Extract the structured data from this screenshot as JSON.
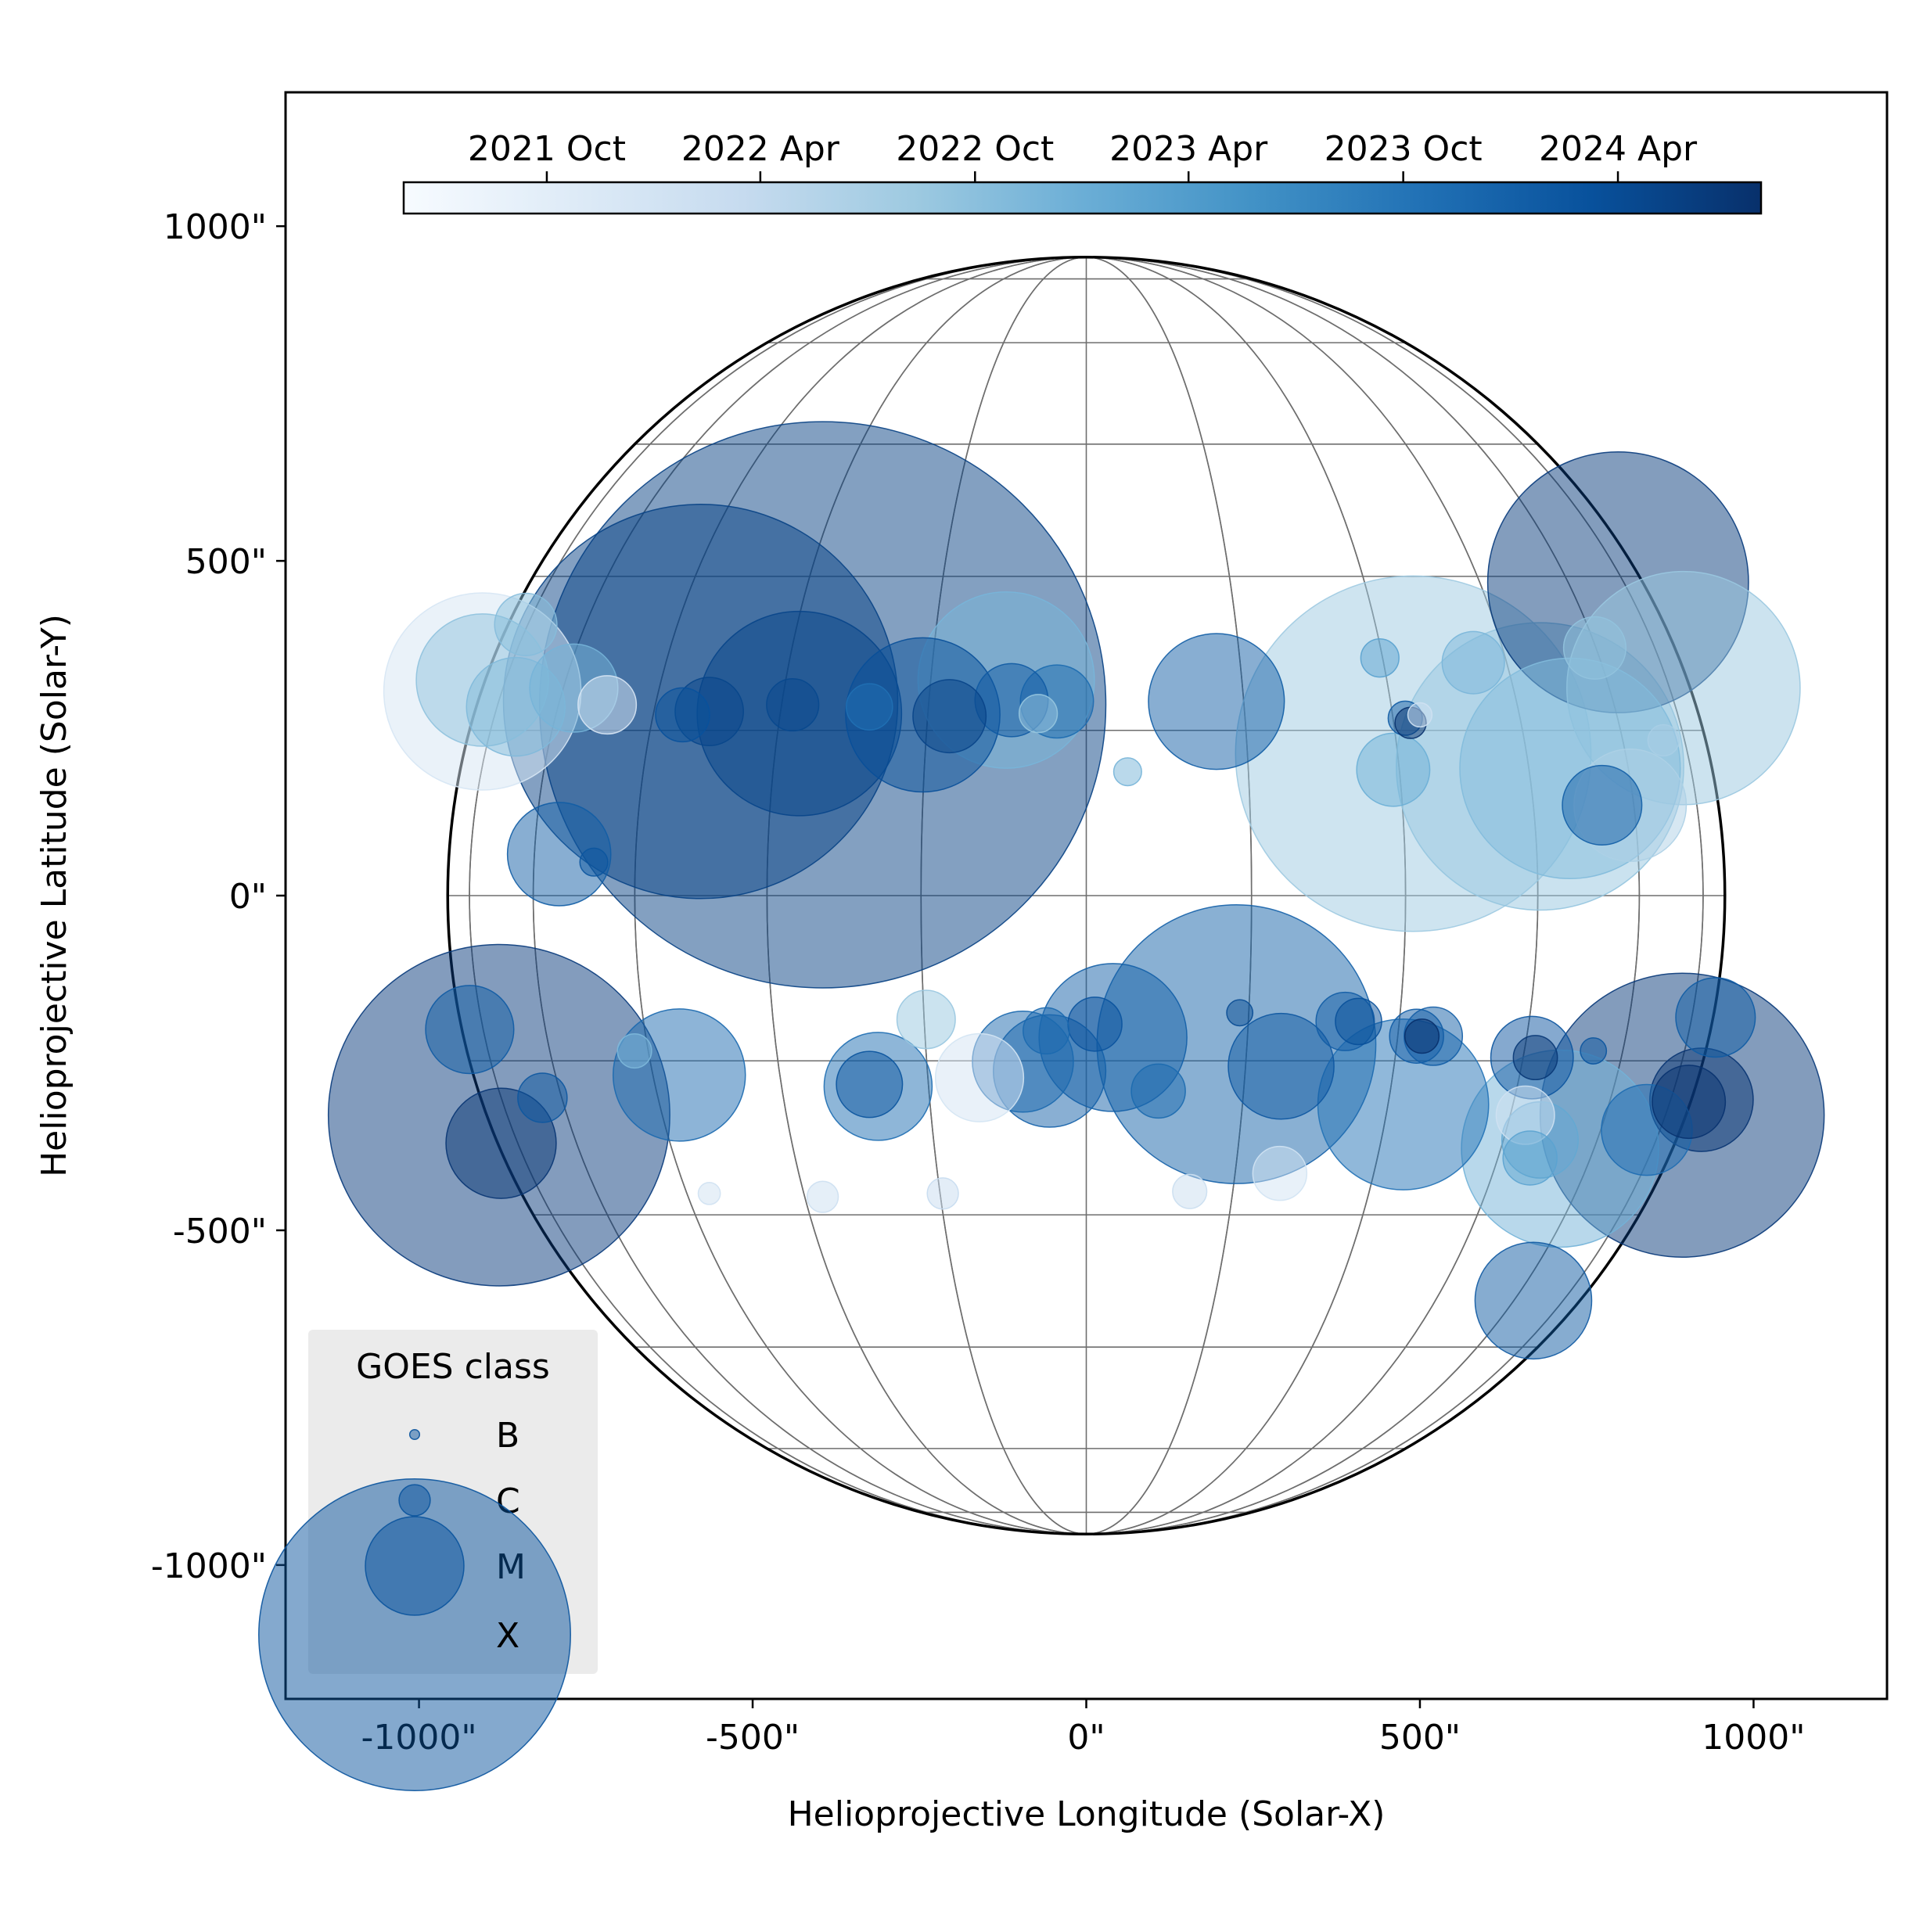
{
  "chart_data": {
    "type": "scatter",
    "xlabel": "Helioprojective Longitude (Solar-X)",
    "ylabel": "Helioprojective Latitude (Solar-Y)",
    "xlim": [
      -1200,
      1200
    ],
    "ylim": [
      -1200,
      1200
    ],
    "x_ticks": [
      {
        "value": -1000,
        "label": "-1000\""
      },
      {
        "value": -500,
        "label": "-500\""
      },
      {
        "value": 0,
        "label": "0\""
      },
      {
        "value": 500,
        "label": "500\""
      },
      {
        "value": 1000,
        "label": "1000\""
      }
    ],
    "y_ticks": [
      {
        "value": 1000,
        "label": "1000\""
      },
      {
        "value": 500,
        "label": "500\""
      },
      {
        "value": 0,
        "label": "0\""
      },
      {
        "value": -500,
        "label": "-500\""
      },
      {
        "value": -1000,
        "label": "-1000\""
      }
    ],
    "solar_radius_arcsec": 957,
    "grid": true,
    "colorbar": {
      "location": "top",
      "colormap": "Blues",
      "range": [
        "2021-06-01",
        "2024-08-01"
      ],
      "ticks": [
        {
          "value": "2021-10-01",
          "label": "2021 Oct"
        },
        {
          "value": "2022-04-01",
          "label": "2022 Apr"
        },
        {
          "value": "2022-10-01",
          "label": "2022 Oct"
        },
        {
          "value": "2023-04-01",
          "label": "2023 Apr"
        },
        {
          "value": "2023-10-01",
          "label": "2023 Oct"
        },
        {
          "value": "2024-04-01",
          "label": "2024 Apr"
        }
      ]
    },
    "legend": {
      "title": "GOES class",
      "location": "lower-left",
      "entries": [
        {
          "label": "B",
          "class": "B"
        },
        {
          "label": "C",
          "class": "C"
        },
        {
          "label": "M",
          "class": "M"
        },
        {
          "label": "X",
          "class": "X"
        }
      ]
    },
    "class_magnitude": {
      "B": 1,
      "C": 10,
      "M": 100,
      "X": 1000
    },
    "point_alpha": 0.5,
    "points": [
      {
        "x": -395,
        "y": 285,
        "date": "2024-05-10",
        "mag": 3300
      },
      {
        "x": -578,
        "y": 290,
        "date": "2024-05-05",
        "mag": 1600
      },
      {
        "x": 797,
        "y": 468,
        "date": "2024-06-05",
        "mag": 700
      },
      {
        "x": -880,
        "y": -328,
        "date": "2024-06-10",
        "mag": 1200
      },
      {
        "x": 893,
        "y": -328,
        "date": "2024-06-15",
        "mag": 830
      },
      {
        "x": 225,
        "y": -222,
        "date": "2023-12-01",
        "mag": 800
      },
      {
        "x": 490,
        "y": 212,
        "date": "2022-05-01",
        "mag": 1300
      },
      {
        "x": 680,
        "y": 193,
        "date": "2022-06-01",
        "mag": 850
      },
      {
        "x": 725,
        "y": 190,
        "date": "2022-08-01",
        "mag": 500
      },
      {
        "x": -430,
        "y": 272,
        "date": "2024-04-20",
        "mag": 430
      },
      {
        "x": 895,
        "y": 310,
        "date": "2022-05-15",
        "mag": 560
      },
      {
        "x": -120,
        "y": 322,
        "date": "2022-09-01",
        "mag": 320
      },
      {
        "x": -245,
        "y": 270,
        "date": "2024-03-01",
        "mag": 245
      },
      {
        "x": 710,
        "y": -378,
        "date": "2022-09-20",
        "mag": 400
      },
      {
        "x": 475,
        "y": -312,
        "date": "2023-09-01",
        "mag": 300
      },
      {
        "x": 40,
        "y": -212,
        "date": "2023-12-10",
        "mag": 225
      },
      {
        "x": 195,
        "y": 290,
        "date": "2023-12-20",
        "mag": 190
      },
      {
        "x": -610,
        "y": -268,
        "date": "2023-10-20",
        "mag": 180
      },
      {
        "x": -905,
        "y": 322,
        "date": "2022-06-20",
        "mag": 180
      },
      {
        "x": -905,
        "y": 305,
        "date": "2021-08-01",
        "mag": 400
      },
      {
        "x": -55,
        "y": -262,
        "date": "2023-12-05",
        "mag": 130
      },
      {
        "x": -95,
        "y": -248,
        "date": "2023-10-25",
        "mag": 105
      },
      {
        "x": -312,
        "y": -285,
        "date": "2023-09-25",
        "mag": 120
      },
      {
        "x": 292,
        "y": -255,
        "date": "2024-01-20",
        "mag": 115
      },
      {
        "x": 670,
        "y": -605,
        "date": "2024-01-10",
        "mag": 140
      },
      {
        "x": 922,
        "y": -305,
        "date": "2024-07-10",
        "mag": 110
      },
      {
        "x": 903,
        "y": -308,
        "date": "2024-07-20",
        "mag": 55
      },
      {
        "x": -877,
        "y": -370,
        "date": "2024-07-05",
        "mag": 125
      },
      {
        "x": -790,
        "y": 62,
        "date": "2023-12-20",
        "mag": 110
      },
      {
        "x": 815,
        "y": 135,
        "date": "2022-03-01",
        "mag": 130
      },
      {
        "x": -855,
        "y": 282,
        "date": "2022-08-10",
        "mag": 100
      },
      {
        "x": 840,
        "y": -350,
        "date": "2023-10-05",
        "mag": 85
      },
      {
        "x": 668,
        "y": -242,
        "date": "2024-02-01",
        "mag": 70
      },
      {
        "x": 773,
        "y": 135,
        "date": "2023-12-15",
        "mag": 65
      },
      {
        "x": -768,
        "y": 310,
        "date": "2022-09-10",
        "mag": 80
      },
      {
        "x": -160,
        "y": -272,
        "date": "2021-08-20",
        "mag": 80
      },
      {
        "x": -44,
        "y": 290,
        "date": "2023-10-10",
        "mag": 55
      },
      {
        "x": -112,
        "y": 292,
        "date": "2024-01-05",
        "mag": 55
      },
      {
        "x": 943,
        "y": -182,
        "date": "2023-12-25",
        "mag": 65
      },
      {
        "x": -924,
        "y": -200,
        "date": "2023-12-28",
        "mag": 80
      },
      {
        "x": 680,
        "y": -365,
        "date": "2022-11-15",
        "mag": 60
      },
      {
        "x": 460,
        "y": 188,
        "date": "2022-10-10",
        "mag": 55
      },
      {
        "x": -565,
        "y": 275,
        "date": "2024-04-15",
        "mag": 48
      },
      {
        "x": -205,
        "y": 268,
        "date": "2024-04-25",
        "mag": 55
      },
      {
        "x": -325,
        "y": -282,
        "date": "2024-02-10",
        "mag": 45
      },
      {
        "x": 388,
        "y": -188,
        "date": "2023-12-22",
        "mag": 35
      },
      {
        "x": 13,
        "y": -192,
        "date": "2024-02-15",
        "mag": 30
      },
      {
        "x": 520,
        "y": -210,
        "date": "2023-12-18",
        "mag": 35
      },
      {
        "x": 495,
        "y": -210,
        "date": "2023-12-24",
        "mag": 30
      },
      {
        "x": 108,
        "y": -292,
        "date": "2023-10-15",
        "mag": 30
      },
      {
        "x": -815,
        "y": -302,
        "date": "2024-01-25",
        "mag": 25
      },
      {
        "x": -605,
        "y": 270,
        "date": "2024-02-20",
        "mag": 30
      },
      {
        "x": 762,
        "y": 370,
        "date": "2022-06-10",
        "mag": 40
      },
      {
        "x": -840,
        "y": 405,
        "date": "2022-07-20",
        "mag": 40
      },
      {
        "x": 580,
        "y": 348,
        "date": "2022-08-25",
        "mag": 40
      },
      {
        "x": -240,
        "y": -185,
        "date": "2022-05-20",
        "mag": 35
      },
      {
        "x": 290,
        "y": -415,
        "date": "2021-09-01",
        "mag": 30
      },
      {
        "x": 658,
        "y": -328,
        "date": "2021-09-15",
        "mag": 35
      },
      {
        "x": 665,
        "y": -392,
        "date": "2022-12-15",
        "mag": 30
      },
      {
        "x": -60,
        "y": -202,
        "date": "2023-10-20",
        "mag": 22
      },
      {
        "x": 408,
        "y": -188,
        "date": "2024-02-25",
        "mag": 22
      },
      {
        "x": -440,
        "y": 285,
        "date": "2024-04-05",
        "mag": 28
      },
      {
        "x": -325,
        "y": 282,
        "date": "2023-09-15",
        "mag": 22
      },
      {
        "x": 673,
        "y": -242,
        "date": "2024-06-25",
        "mag": 20
      },
      {
        "x": -72,
        "y": 272,
        "date": "2022-05-25",
        "mag": 15
      },
      {
        "x": -718,
        "y": 285,
        "date": "2021-07-15",
        "mag": 35
      },
      {
        "x": 440,
        "y": 355,
        "date": "2022-12-25",
        "mag": 15
      },
      {
        "x": -677,
        "y": -232,
        "date": "2022-08-15",
        "mag": 12
      },
      {
        "x": 478,
        "y": 265,
        "date": "2023-12-27",
        "mag": 12
      },
      {
        "x": 486,
        "y": 258,
        "date": "2024-07-25",
        "mag": 10
      },
      {
        "x": 503,
        "y": -210,
        "date": "2024-08-01",
        "mag": 12
      },
      {
        "x": -738,
        "y": 50,
        "date": "2024-01-30",
        "mag": 8
      },
      {
        "x": 230,
        "y": -175,
        "date": "2024-03-20",
        "mag": 7
      },
      {
        "x": 760,
        "y": -232,
        "date": "2024-02-05",
        "mag": 7
      },
      {
        "x": 62,
        "y": 185,
        "date": "2022-09-10",
        "mag": 8
      },
      {
        "x": 865,
        "y": 232,
        "date": "2022-03-20",
        "mag": 10
      },
      {
        "x": 500,
        "y": 270,
        "date": "2021-09-20",
        "mag": 6
      },
      {
        "x": -395,
        "y": -450,
        "date": "2021-10-10",
        "mag": 10
      },
      {
        "x": -215,
        "y": -445,
        "date": "2021-11-10",
        "mag": 10
      },
      {
        "x": 155,
        "y": -442,
        "date": "2021-10-20",
        "mag": 12
      },
      {
        "x": -565,
        "y": -445,
        "date": "2021-09-20",
        "mag": 5
      }
    ]
  }
}
